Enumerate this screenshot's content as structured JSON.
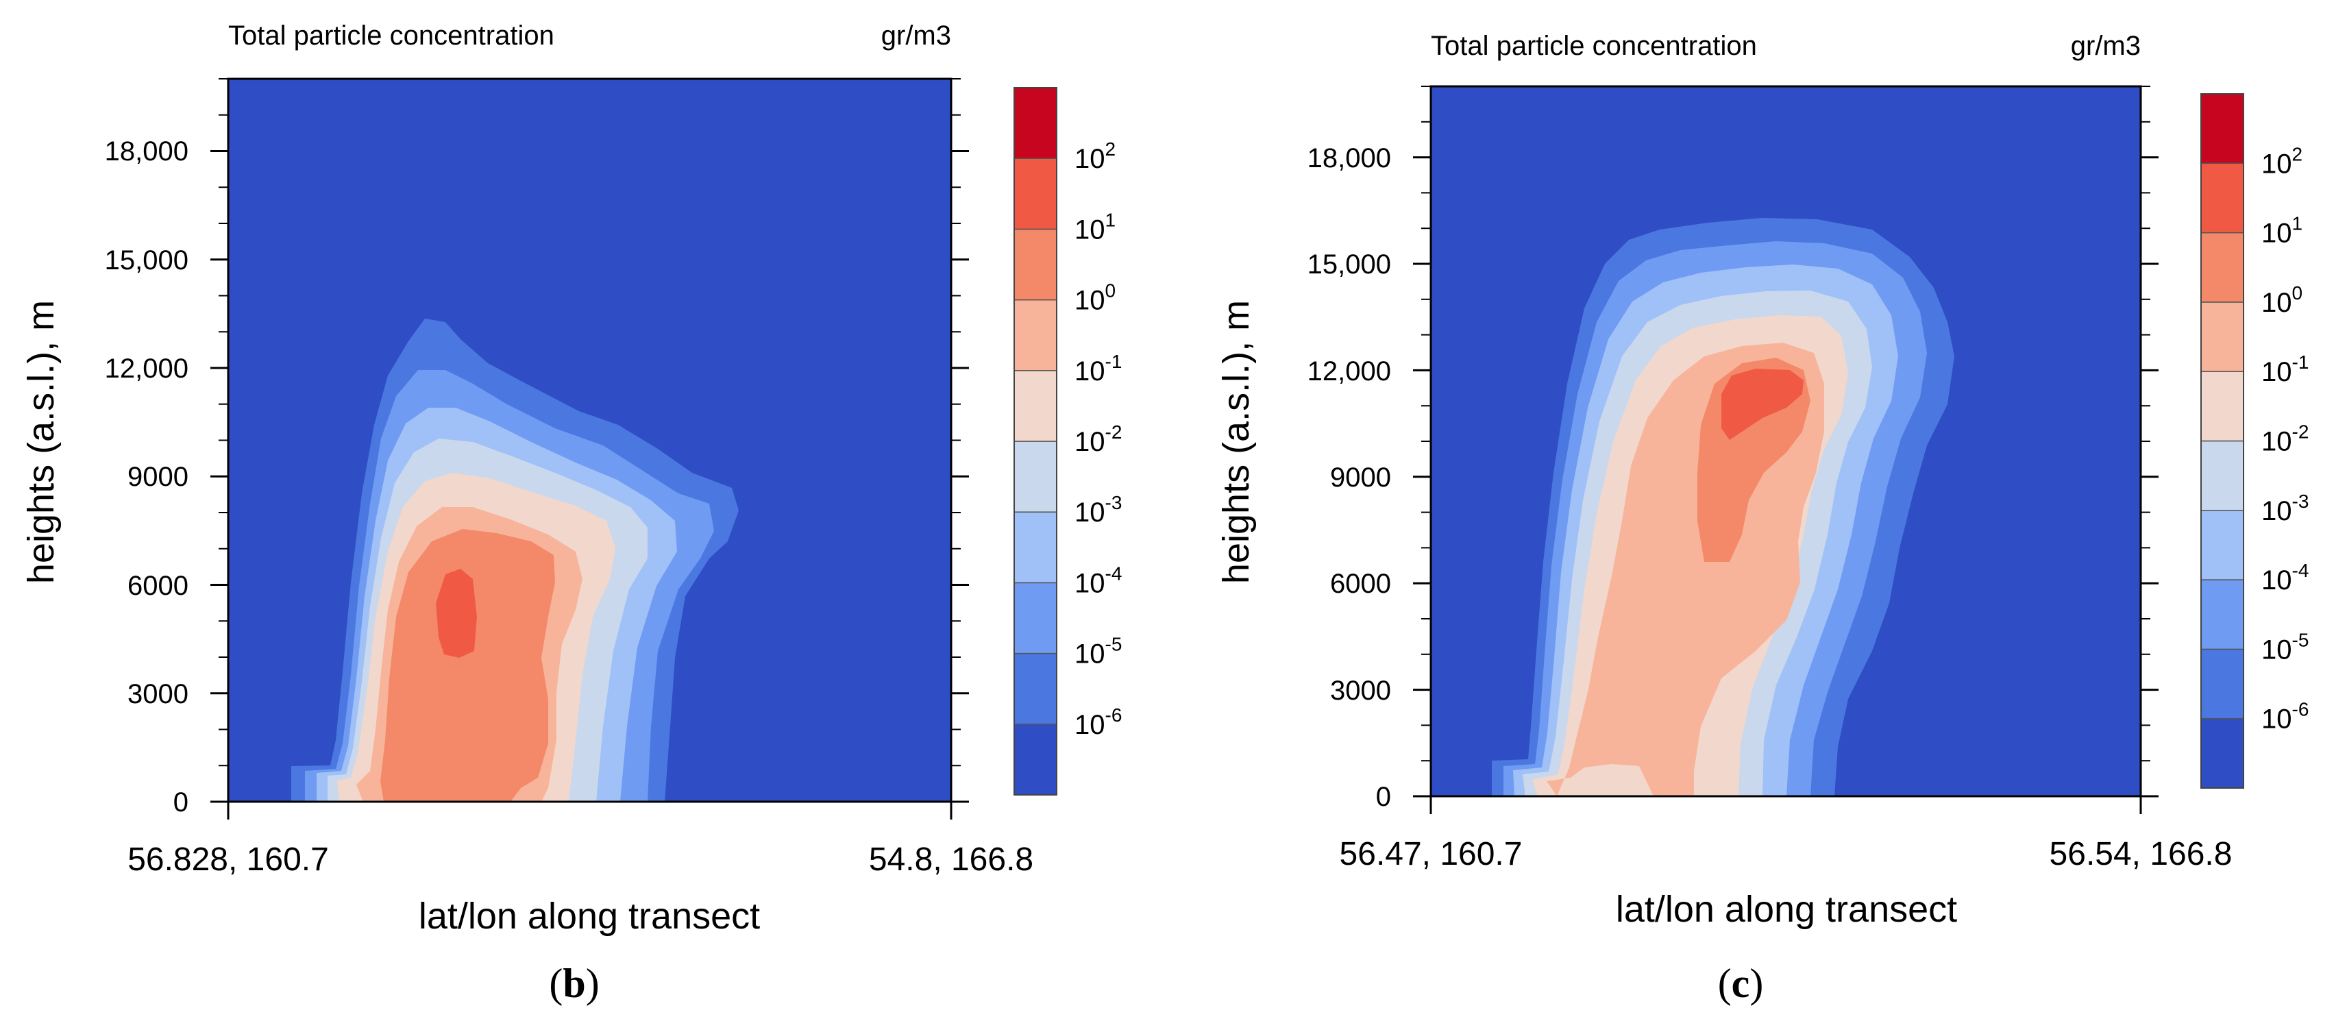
{
  "colors": {
    "levels": [
      "#2f4dc4",
      "#4a78e0",
      "#6f9bf2",
      "#a0c0f8",
      "#c9d8ec",
      "#f2d8cc",
      "#f8b49a",
      "#f4896a",
      "#f05a45",
      "#c8051f"
    ],
    "frame": "#000000"
  },
  "chart_data": [
    {
      "id": "b",
      "type": "contour",
      "title": "Total particle concentration",
      "units": "gr/m3",
      "ylabel": "heights (a.s.l.), m",
      "xlabel": "lat/lon along transect",
      "x_start_label": "56.828, 160.7",
      "x_end_label": "54.8, 166.8",
      "ylim": [
        0,
        20000
      ],
      "y_ticks": [
        0,
        3000,
        6000,
        9000,
        12000,
        15000,
        18000
      ],
      "y_tick_labels": [
        "0",
        "3000",
        "6000",
        "9000",
        "12,000",
        "15,000",
        "18,000"
      ],
      "caption": "b",
      "caption_open": "(",
      "caption_close": ")",
      "legend": {
        "exponents": [
          "-6",
          "-5",
          "-4",
          "-3",
          "-2",
          "-1",
          "0",
          "1",
          "2"
        ],
        "base": "10"
      }
    },
    {
      "id": "c",
      "type": "contour",
      "title": "Total particle concentration",
      "units": "gr/m3",
      "ylabel": "heights (a.s.l.), m",
      "xlabel": "lat/lon along transect",
      "x_start_label": "56.47, 160.7",
      "x_end_label": "56.54, 166.8",
      "ylim": [
        0,
        20000
      ],
      "y_ticks": [
        0,
        3000,
        6000,
        9000,
        12000,
        15000,
        18000
      ],
      "y_tick_labels": [
        "0",
        "3000",
        "6000",
        "9000",
        "12,000",
        "15,000",
        "18,000"
      ],
      "caption": "c",
      "caption_open": "(",
      "caption_close": ")",
      "legend": {
        "exponents": [
          "-6",
          "-5",
          "-4",
          "-3",
          "-2",
          "-1",
          "0",
          "1",
          "2"
        ],
        "base": "10"
      }
    }
  ]
}
